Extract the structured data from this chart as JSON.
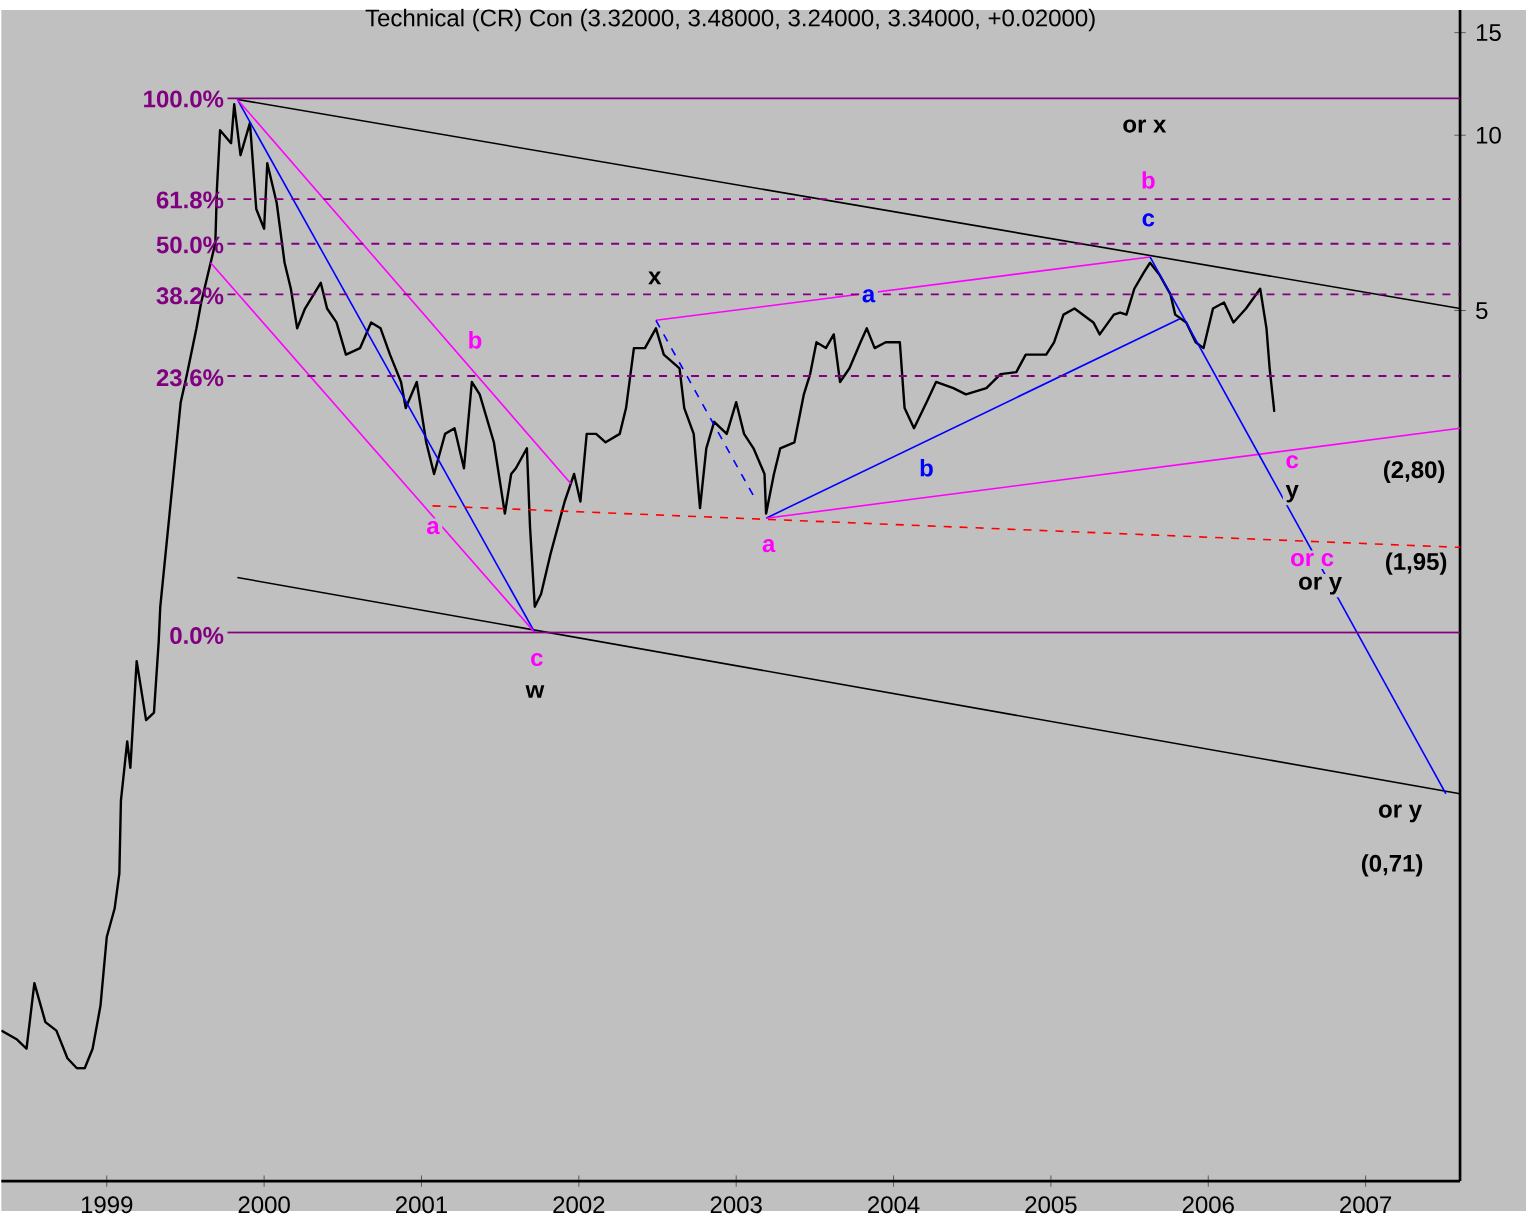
{
  "chart_data": {
    "type": "line",
    "title": "Technical (CR) Con (3.32000, 3.48000, 3.24000, 3.34000, +0.02000)",
    "log": "y",
    "grid": false,
    "xlim": [
      1998.33,
      2007.6
    ],
    "ylim": [
      0.16,
      16.4
    ],
    "xticks": [
      1999,
      2000,
      2001,
      2002,
      2003,
      2004,
      2005,
      2006,
      2007
    ],
    "yticks": [
      5,
      10,
      15
    ],
    "series": [
      {
        "color": "#000000",
        "x": [
          1998.33,
          1998.43,
          1998.49,
          1998.54,
          1998.61,
          1998.68,
          1998.75,
          1998.81,
          1998.86,
          1998.91,
          1998.96,
          1999.0,
          1999.05,
          1999.08,
          1999.09,
          1999.13,
          1999.15,
          1999.19,
          1999.25,
          1999.3,
          1999.33,
          1999.34,
          1999.47,
          1999.51,
          1999.57,
          1999.6,
          1999.69,
          1999.7,
          1999.72,
          1999.79,
          1999.81,
          1999.85,
          1999.91,
          1999.95,
          2000.0,
          2000.02,
          2000.08,
          2000.13,
          2000.17,
          2000.21,
          2000.26,
          2000.36,
          2000.4,
          2000.46,
          2000.52,
          2000.61,
          2000.68,
          2000.74,
          2000.8,
          2000.87,
          2000.9,
          2000.97,
          2001.03,
          2001.08,
          2001.15,
          2001.21,
          2001.27,
          2001.32,
          2001.37,
          2001.46,
          2001.53,
          2001.57,
          2001.6,
          2001.67,
          2001.69,
          2001.72,
          2001.76,
          2001.82,
          2001.91,
          2001.97,
          2002.01,
          2002.05,
          2002.11,
          2002.17,
          2002.26,
          2002.3,
          2002.35,
          2002.42,
          2002.49,
          2002.54,
          2002.64,
          2002.67,
          2002.73,
          2002.77,
          2002.81,
          2002.86,
          2002.94,
          2003.0,
          2003.05,
          2003.11,
          2003.18,
          2003.19,
          2003.24,
          2003.28,
          2003.37,
          2003.43,
          2003.47,
          2003.51,
          2003.57,
          2003.62,
          2003.66,
          2003.72,
          2003.79,
          2003.83,
          2003.88,
          2003.95,
          2004.04,
          2004.07,
          2004.13,
          2004.21,
          2004.27,
          2004.38,
          2004.46,
          2004.59,
          2004.68,
          2004.78,
          2004.84,
          2004.97,
          2005.02,
          2005.08,
          2005.15,
          2005.27,
          2005.31,
          2005.4,
          2005.44,
          2005.48,
          2005.53,
          2005.59,
          2005.63,
          2005.69,
          2005.76,
          2005.79,
          2005.86,
          2005.92,
          2005.97,
          2006.03,
          2006.1,
          2006.16,
          2006.24,
          2006.33,
          2006.37,
          2006.39,
          2006.42
        ],
        "values": [
          0.29,
          0.28,
          0.27,
          0.35,
          0.3,
          0.29,
          0.26,
          0.25,
          0.25,
          0.27,
          0.32,
          0.42,
          0.47,
          0.54,
          0.72,
          0.91,
          0.82,
          1.25,
          0.99,
          1.02,
          1.35,
          1.55,
          3.48,
          3.89,
          4.66,
          5.16,
          6.53,
          8.08,
          10.2,
          9.69,
          11.3,
          9.24,
          10.5,
          7.47,
          6.91,
          8.95,
          7.65,
          6.04,
          5.45,
          4.66,
          5.04,
          5.58,
          5.04,
          4.77,
          4.2,
          4.31,
          4.77,
          4.66,
          4.2,
          3.77,
          3.4,
          3.77,
          2.97,
          2.62,
          3.07,
          3.14,
          2.68,
          3.77,
          3.59,
          2.97,
          2.24,
          2.62,
          2.68,
          2.9,
          2.12,
          1.55,
          1.63,
          1.91,
          2.35,
          2.62,
          2.35,
          3.07,
          3.07,
          2.97,
          3.07,
          3.4,
          4.31,
          4.31,
          4.66,
          4.2,
          3.98,
          3.4,
          3.07,
          2.29,
          2.9,
          3.22,
          3.07,
          3.48,
          3.07,
          2.9,
          2.62,
          2.24,
          2.62,
          2.9,
          2.97,
          3.59,
          3.89,
          4.41,
          4.31,
          4.55,
          3.77,
          3.98,
          4.41,
          4.66,
          4.31,
          4.41,
          4.41,
          3.4,
          3.14,
          3.48,
          3.77,
          3.68,
          3.59,
          3.68,
          3.89,
          3.92,
          4.2,
          4.2,
          4.41,
          4.92,
          5.04,
          4.77,
          4.55,
          4.92,
          4.96,
          4.92,
          5.45,
          5.81,
          6.04,
          5.76,
          5.33,
          4.92,
          4.77,
          4.41,
          4.31,
          5.04,
          5.16,
          4.77,
          5.04,
          5.45,
          4.66,
          3.98,
          3.35
        ]
      },
      {
        "type": "line",
        "color": "#000000",
        "x": [
          1999.83,
          2007.6
        ],
        "values": [
          11.52,
          5.04
        ]
      },
      {
        "type": "line",
        "color": "#000000",
        "x": [
          1999.83,
          2007.6
        ],
        "values": [
          1.74,
          0.74
        ]
      },
      {
        "type": "line",
        "color": "#0000ff",
        "x": [
          1999.83,
          2001.72
        ],
        "values": [
          11.52,
          1.4
        ]
      },
      {
        "type": "line",
        "color": "#ff00ff",
        "x": [
          1999.83,
          2001.95
        ],
        "values": [
          11.52,
          2.52
        ]
      },
      {
        "type": "line",
        "color": "#ff00ff",
        "x": [
          1999.66,
          2001.72
        ],
        "values": [
          6.04,
          1.4
        ]
      },
      {
        "type": "line",
        "color": "#ff0000",
        "line_style": "dashed",
        "x": [
          2001.07,
          2007.6
        ],
        "values": [
          2.31,
          1.96
        ]
      },
      {
        "type": "line",
        "color": "#ff00ff",
        "x": [
          2002.49,
          2005.63
        ],
        "values": [
          4.81,
          6.18
        ]
      },
      {
        "type": "line",
        "color": "#0000ff",
        "line_style": "dashed",
        "x": [
          2002.49,
          2003.13
        ],
        "values": [
          4.81,
          2.35
        ]
      },
      {
        "type": "line",
        "color": "#0000ff",
        "x": [
          2003.19,
          2005.82
        ],
        "values": [
          2.2,
          4.84
        ]
      },
      {
        "type": "line",
        "color": "#ff00ff",
        "x": [
          2003.19,
          2007.6
        ],
        "values": [
          2.2,
          3.14
        ]
      },
      {
        "type": "line",
        "color": "#0000ff",
        "x": [
          2005.63,
          2007.51
        ],
        "values": [
          6.18,
          0.74
        ]
      }
    ],
    "ref_lines": [
      {
        "axis": "y",
        "value": 11.57,
        "color": "#800080",
        "line_style": "solid"
      },
      {
        "axis": "y",
        "value": 7.77,
        "color": "#800080",
        "line_style": "dashed"
      },
      {
        "axis": "y",
        "value": 6.51,
        "color": "#800080",
        "line_style": "dashed"
      },
      {
        "axis": "y",
        "value": 5.33,
        "color": "#800080",
        "line_style": "dashed"
      },
      {
        "axis": "y",
        "value": 3.86,
        "color": "#800080",
        "line_style": "dashed"
      },
      {
        "axis": "y",
        "value": 1.4,
        "color": "#800080",
        "line_style": "solid"
      }
    ],
    "annotations": [
      "a",
      "b",
      "c",
      "w",
      "x",
      "a",
      "a",
      "b",
      "or x",
      "b",
      "c",
      "c",
      "(2,80)",
      "y",
      "or c",
      "(1,95)",
      "or y",
      "or y",
      "(0,71)",
      "100.0%",
      "61.8%",
      "50.0%",
      "38.2%",
      "23.6%",
      "0.0%"
    ]
  }
}
